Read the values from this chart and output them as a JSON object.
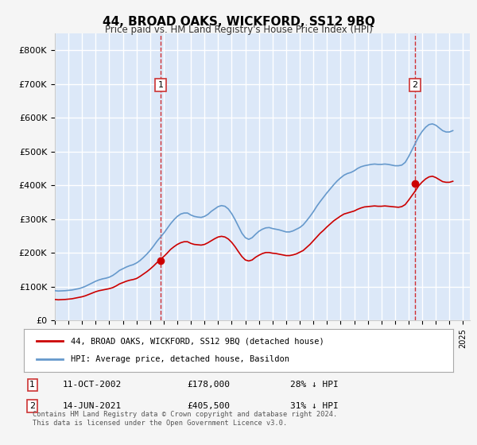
{
  "title": "44, BROAD OAKS, WICKFORD, SS12 9BQ",
  "subtitle": "Price paid vs. HM Land Registry's House Price Index (HPI)",
  "hpi_color": "#6699cc",
  "price_color": "#cc0000",
  "background_color": "#f0f4ff",
  "plot_bg_color": "#dce8f8",
  "grid_color": "#ffffff",
  "ylim": [
    0,
    850000
  ],
  "yticks": [
    0,
    100000,
    200000,
    300000,
    400000,
    500000,
    600000,
    700000,
    800000
  ],
  "xlim_start": 1995,
  "xlim_end": 2025.5,
  "sale1_x": 2002.78,
  "sale1_y": 178000,
  "sale2_x": 2021.45,
  "sale2_y": 405500,
  "legend_line1": "44, BROAD OAKS, WICKFORD, SS12 9BQ (detached house)",
  "legend_line2": "HPI: Average price, detached house, Basildon",
  "annotation1_date": "11-OCT-2002",
  "annotation1_price": "£178,000",
  "annotation1_hpi": "28% ↓ HPI",
  "annotation2_date": "14-JUN-2021",
  "annotation2_price": "£405,500",
  "annotation2_hpi": "31% ↓ HPI",
  "footer": "Contains HM Land Registry data © Crown copyright and database right 2024.\nThis data is licensed under the Open Government Licence v3.0.",
  "hpi_data_x": [
    1995.0,
    1995.25,
    1995.5,
    1995.75,
    1996.0,
    1996.25,
    1996.5,
    1996.75,
    1997.0,
    1997.25,
    1997.5,
    1997.75,
    1998.0,
    1998.25,
    1998.5,
    1998.75,
    1999.0,
    1999.25,
    1999.5,
    1999.75,
    2000.0,
    2000.25,
    2000.5,
    2000.75,
    2001.0,
    2001.25,
    2001.5,
    2001.75,
    2002.0,
    2002.25,
    2002.5,
    2002.75,
    2003.0,
    2003.25,
    2003.5,
    2003.75,
    2004.0,
    2004.25,
    2004.5,
    2004.75,
    2005.0,
    2005.25,
    2005.5,
    2005.75,
    2006.0,
    2006.25,
    2006.5,
    2006.75,
    2007.0,
    2007.25,
    2007.5,
    2007.75,
    2008.0,
    2008.25,
    2008.5,
    2008.75,
    2009.0,
    2009.25,
    2009.5,
    2009.75,
    2010.0,
    2010.25,
    2010.5,
    2010.75,
    2011.0,
    2011.25,
    2011.5,
    2011.75,
    2012.0,
    2012.25,
    2012.5,
    2012.75,
    2013.0,
    2013.25,
    2013.5,
    2013.75,
    2014.0,
    2014.25,
    2014.5,
    2014.75,
    2015.0,
    2015.25,
    2015.5,
    2015.75,
    2016.0,
    2016.25,
    2016.5,
    2016.75,
    2017.0,
    2017.25,
    2017.5,
    2017.75,
    2018.0,
    2018.25,
    2018.5,
    2018.75,
    2019.0,
    2019.25,
    2019.5,
    2019.75,
    2020.0,
    2020.25,
    2020.5,
    2020.75,
    2021.0,
    2021.25,
    2021.5,
    2021.75,
    2022.0,
    2022.25,
    2022.5,
    2022.75,
    2023.0,
    2023.25,
    2023.5,
    2023.75,
    2024.0,
    2024.25
  ],
  "hpi_data_y": [
    88000,
    87000,
    87500,
    88000,
    89000,
    90000,
    92000,
    94000,
    97000,
    101000,
    106000,
    111000,
    116000,
    120000,
    123000,
    125000,
    128000,
    133000,
    140000,
    148000,
    153000,
    158000,
    162000,
    165000,
    170000,
    177000,
    186000,
    196000,
    207000,
    220000,
    234000,
    246000,
    258000,
    272000,
    286000,
    298000,
    308000,
    315000,
    318000,
    318000,
    312000,
    308000,
    306000,
    305000,
    308000,
    314000,
    323000,
    330000,
    337000,
    340000,
    338000,
    330000,
    316000,
    298000,
    278000,
    258000,
    245000,
    240000,
    245000,
    255000,
    264000,
    270000,
    274000,
    275000,
    272000,
    270000,
    268000,
    265000,
    262000,
    262000,
    265000,
    270000,
    275000,
    283000,
    295000,
    308000,
    322000,
    338000,
    352000,
    365000,
    378000,
    390000,
    402000,
    413000,
    422000,
    430000,
    435000,
    438000,
    443000,
    450000,
    455000,
    458000,
    460000,
    462000,
    463000,
    462000,
    462000,
    463000,
    462000,
    460000,
    458000,
    458000,
    460000,
    468000,
    485000,
    505000,
    525000,
    545000,
    560000,
    572000,
    580000,
    582000,
    578000,
    570000,
    562000,
    558000,
    558000,
    562000
  ],
  "price_data_x": [
    1995.0,
    1995.25,
    1995.5,
    1995.75,
    1996.0,
    1996.25,
    1996.5,
    1996.75,
    1997.0,
    1997.25,
    1997.5,
    1997.75,
    1998.0,
    1998.25,
    1998.5,
    1998.75,
    1999.0,
    1999.25,
    1999.5,
    1999.75,
    2000.0,
    2000.25,
    2000.5,
    2000.75,
    2001.0,
    2001.25,
    2001.5,
    2001.75,
    2002.0,
    2002.25,
    2002.5,
    2002.75,
    2003.0,
    2003.25,
    2003.5,
    2003.75,
    2004.0,
    2004.25,
    2004.5,
    2004.75,
    2005.0,
    2005.25,
    2005.5,
    2005.75,
    2006.0,
    2006.25,
    2006.5,
    2006.75,
    2007.0,
    2007.25,
    2007.5,
    2007.75,
    2008.0,
    2008.25,
    2008.5,
    2008.75,
    2009.0,
    2009.25,
    2009.5,
    2009.75,
    2010.0,
    2010.25,
    2010.5,
    2010.75,
    2011.0,
    2011.25,
    2011.5,
    2011.75,
    2012.0,
    2012.25,
    2012.5,
    2012.75,
    2013.0,
    2013.25,
    2013.5,
    2013.75,
    2014.0,
    2014.25,
    2014.5,
    2014.75,
    2015.0,
    2015.25,
    2015.5,
    2015.75,
    2016.0,
    2016.25,
    2016.5,
    2016.75,
    2017.0,
    2017.25,
    2017.5,
    2017.75,
    2018.0,
    2018.25,
    2018.5,
    2018.75,
    2019.0,
    2019.25,
    2019.5,
    2019.75,
    2020.0,
    2020.25,
    2020.5,
    2020.75,
    2021.0,
    2021.25,
    2021.5,
    2021.75,
    2022.0,
    2022.25,
    2022.5,
    2022.75,
    2023.0,
    2023.25,
    2023.5,
    2023.75,
    2024.0,
    2024.25
  ],
  "price_data_y": [
    62000,
    61000,
    61500,
    62000,
    63000,
    64000,
    66000,
    68000,
    70000,
    73000,
    77000,
    81000,
    85000,
    88000,
    90000,
    92000,
    94000,
    97000,
    102000,
    108000,
    112000,
    116000,
    119000,
    121000,
    124000,
    130000,
    137000,
    144000,
    152000,
    161000,
    171000,
    180000,
    189000,
    199000,
    210000,
    218000,
    225000,
    230000,
    233000,
    233000,
    228000,
    225000,
    224000,
    223000,
    225000,
    230000,
    236000,
    242000,
    247000,
    249000,
    247000,
    241000,
    231000,
    218000,
    203000,
    189000,
    179000,
    176000,
    179000,
    187000,
    193000,
    198000,
    201000,
    201000,
    199000,
    198000,
    196000,
    194000,
    192000,
    192000,
    194000,
    197000,
    202000,
    207000,
    216000,
    225000,
    236000,
    247000,
    258000,
    267000,
    277000,
    286000,
    295000,
    302000,
    309000,
    315000,
    318000,
    321000,
    324000,
    329000,
    333000,
    336000,
    337000,
    338000,
    339000,
    338000,
    338000,
    339000,
    338000,
    337000,
    336000,
    335000,
    337000,
    343000,
    356000,
    370000,
    384000,
    399000,
    410000,
    419000,
    425000,
    427000,
    423000,
    417000,
    411000,
    409000,
    409000,
    412000
  ]
}
